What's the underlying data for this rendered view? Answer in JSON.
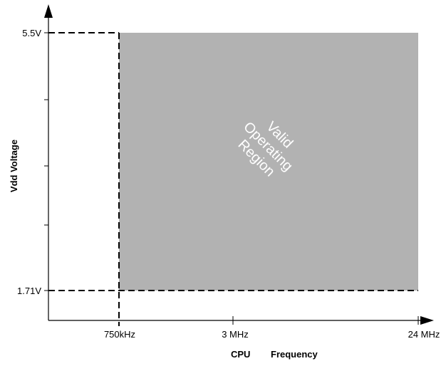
{
  "diagram": {
    "y_axis_label": "Vdd Voltage",
    "x_axis_label_parts": [
      "CPU",
      "Frequency"
    ],
    "y_ticks": [
      "5.5V",
      "1.71V"
    ],
    "x_ticks": [
      "750kHz",
      "3 MHz",
      "24 MHz"
    ],
    "region_label_lines": [
      "Valid",
      "Operating",
      "Region"
    ],
    "region_color": "#b2b2b2"
  }
}
